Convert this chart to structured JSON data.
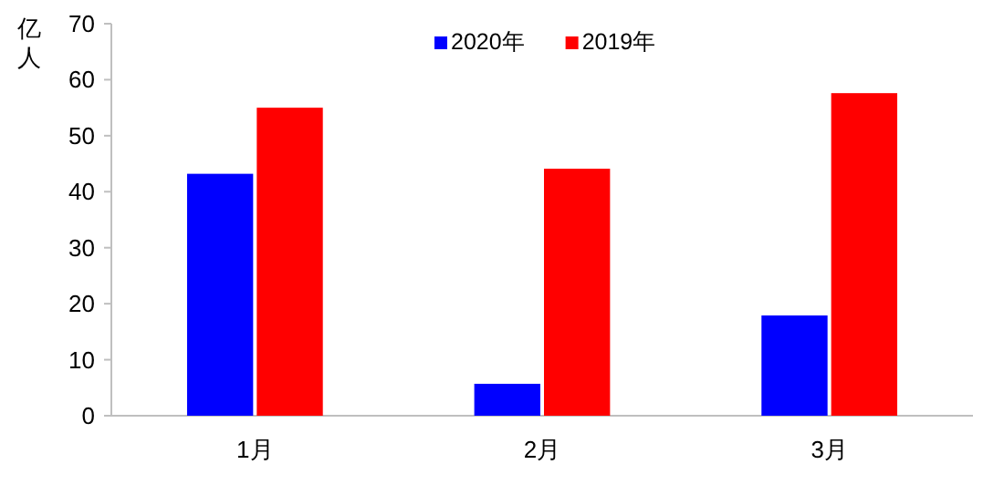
{
  "chart_data": {
    "type": "bar",
    "ylabel": "亿人",
    "categories": [
      "1月",
      "2月",
      "3月"
    ],
    "series": [
      {
        "name": "2020年",
        "color": "#0000ff",
        "values": [
          43.2,
          5.7,
          17.9
        ]
      },
      {
        "name": "2019年",
        "color": "#ff0000",
        "values": [
          55.0,
          44.1,
          57.6
        ]
      }
    ],
    "ylim": [
      0,
      70
    ],
    "yticks": [
      0,
      10,
      20,
      30,
      40,
      50,
      60,
      70
    ],
    "grid": false,
    "legend": "top"
  }
}
